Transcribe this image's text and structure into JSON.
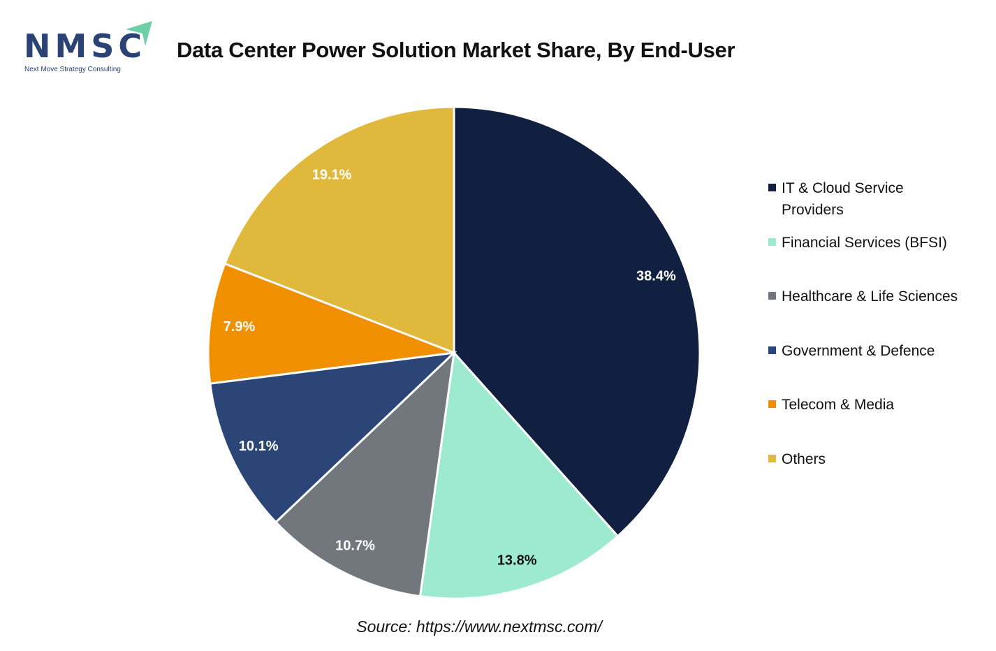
{
  "logo": {
    "text": "NMSC",
    "tagline": "Next Move Strategy Consulting"
  },
  "source": "Source: https://www.nextmsc.com/",
  "chart_data": {
    "type": "pie",
    "title": "Data Center Power Solution Market Share, By End-User",
    "unit": "%",
    "start": "12 o'clock, clockwise",
    "legend_position": "right",
    "slices": [
      {
        "label": "IT & Cloud Service Providers",
        "value": 38.4,
        "display": "38.4%",
        "color": "#111f40",
        "label_color": "#ffffff"
      },
      {
        "label": "Financial Services (BFSI)",
        "value": 13.8,
        "display": "13.8%",
        "color": "#9eead0",
        "label_color": "#111111"
      },
      {
        "label": "Healthcare & Life Sciences",
        "value": 10.7,
        "display": "10.7%",
        "color": "#72767d",
        "label_color": "#ffffff"
      },
      {
        "label": "Government & Defence",
        "value": 10.1,
        "display": "10.1%",
        "color": "#2b4577",
        "label_color": "#ffffff"
      },
      {
        "label": "Telecom & Media",
        "value": 7.9,
        "display": "7.9%",
        "color": "#f08f00",
        "label_color": "#ffffff"
      },
      {
        "label": "Others",
        "value": 19.1,
        "display": "19.1%",
        "color": "#e0b83c",
        "label_color": "#ffffff"
      }
    ]
  }
}
